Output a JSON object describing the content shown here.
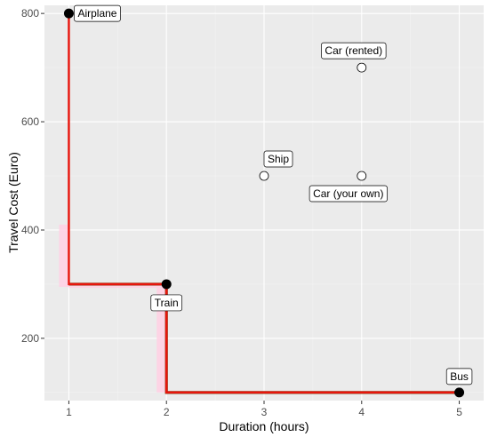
{
  "chart_data": {
    "type": "scatter",
    "title": "",
    "xlabel": "Duration (hours)",
    "ylabel": "Travel Cost (Euro)",
    "xlim": [
      0.75,
      5.25
    ],
    "ylim": [
      85,
      815
    ],
    "x_ticks": [
      1,
      2,
      3,
      4,
      5
    ],
    "y_ticks": [
      200,
      400,
      600,
      800
    ],
    "grid": true,
    "legend": "none",
    "points": [
      {
        "label": "Airplane",
        "x": 1,
        "y": 800,
        "pareto": true
      },
      {
        "label": "Train",
        "x": 2,
        "y": 300,
        "pareto": true
      },
      {
        "label": "Bus",
        "x": 5,
        "y": 100,
        "pareto": true
      },
      {
        "label": "Ship",
        "x": 3,
        "y": 500,
        "pareto": false
      },
      {
        "label": "Car (rented)",
        "x": 4,
        "y": 700,
        "pareto": false
      },
      {
        "label": "Car (your own)",
        "x": 4,
        "y": 500,
        "pareto": false
      }
    ],
    "frontier_red": [
      [
        1,
        800
      ],
      [
        1,
        300
      ],
      [
        2,
        300
      ],
      [
        2,
        100
      ],
      [
        5,
        100
      ]
    ],
    "frontier_brown": [
      [
        1,
        300
      ],
      [
        2,
        300
      ],
      [
        2,
        100
      ],
      [
        5,
        100
      ]
    ],
    "highlight_regions": [
      {
        "x": [
          0.9,
          1.0
        ],
        "y": [
          295,
          410
        ]
      },
      {
        "x": [
          1.0,
          2.0
        ],
        "y": [
          293,
          300
        ]
      },
      {
        "x": [
          1.9,
          2.0
        ],
        "y": [
          100,
          300
        ]
      },
      {
        "x": [
          2.0,
          5.0
        ],
        "y": [
          98,
          102
        ]
      }
    ],
    "colors": {
      "panel": "#ebebeb",
      "grid_major": "#ffffff",
      "grid_minor": "#f3f3f3",
      "frontier_red": "#e8150c",
      "frontier_brown": "#7a3b10",
      "highlight": "#ffd1e4",
      "point_fill": "#000000",
      "open_point_fill": "#ffffff"
    }
  }
}
